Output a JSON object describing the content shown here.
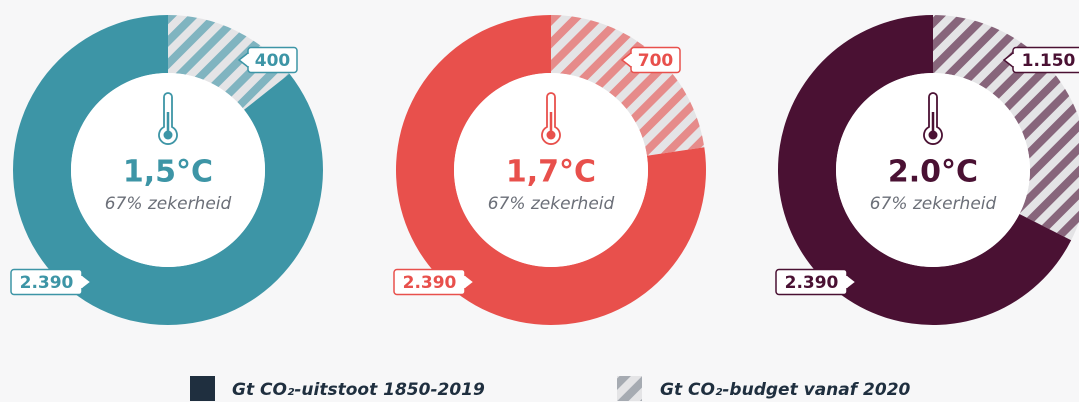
{
  "chart_data": [
    {
      "type": "donut",
      "title": "1,5°C",
      "subtitle": "67% zekerheid",
      "values": [
        2390,
        400
      ],
      "value_labels": [
        "2.390",
        "400"
      ],
      "colors": [
        "#3d95a6",
        "#3d95a6"
      ],
      "hatched": [
        false,
        true
      ]
    },
    {
      "type": "donut",
      "title": "1,7°C",
      "subtitle": "67% zekerheid",
      "values": [
        2390,
        700
      ],
      "value_labels": [
        "2.390",
        "700"
      ],
      "colors": [
        "#e8504c",
        "#e8504c"
      ],
      "hatched": [
        false,
        true
      ]
    },
    {
      "type": "donut",
      "title": "2.0°C",
      "subtitle": "67% zekerheid",
      "values": [
        2390,
        1150
      ],
      "value_labels": [
        "2.390",
        "1.150"
      ],
      "colors": [
        "#4a1133",
        "#4a1133"
      ],
      "hatched": [
        false,
        true
      ]
    }
  ],
  "legend": [
    "Gt CO₂-uitstoot 1850-2019",
    "Gt CO₂-budget vanaf 2020"
  ],
  "legend_colors": [
    "#1f2f3f",
    "#7d8590"
  ]
}
